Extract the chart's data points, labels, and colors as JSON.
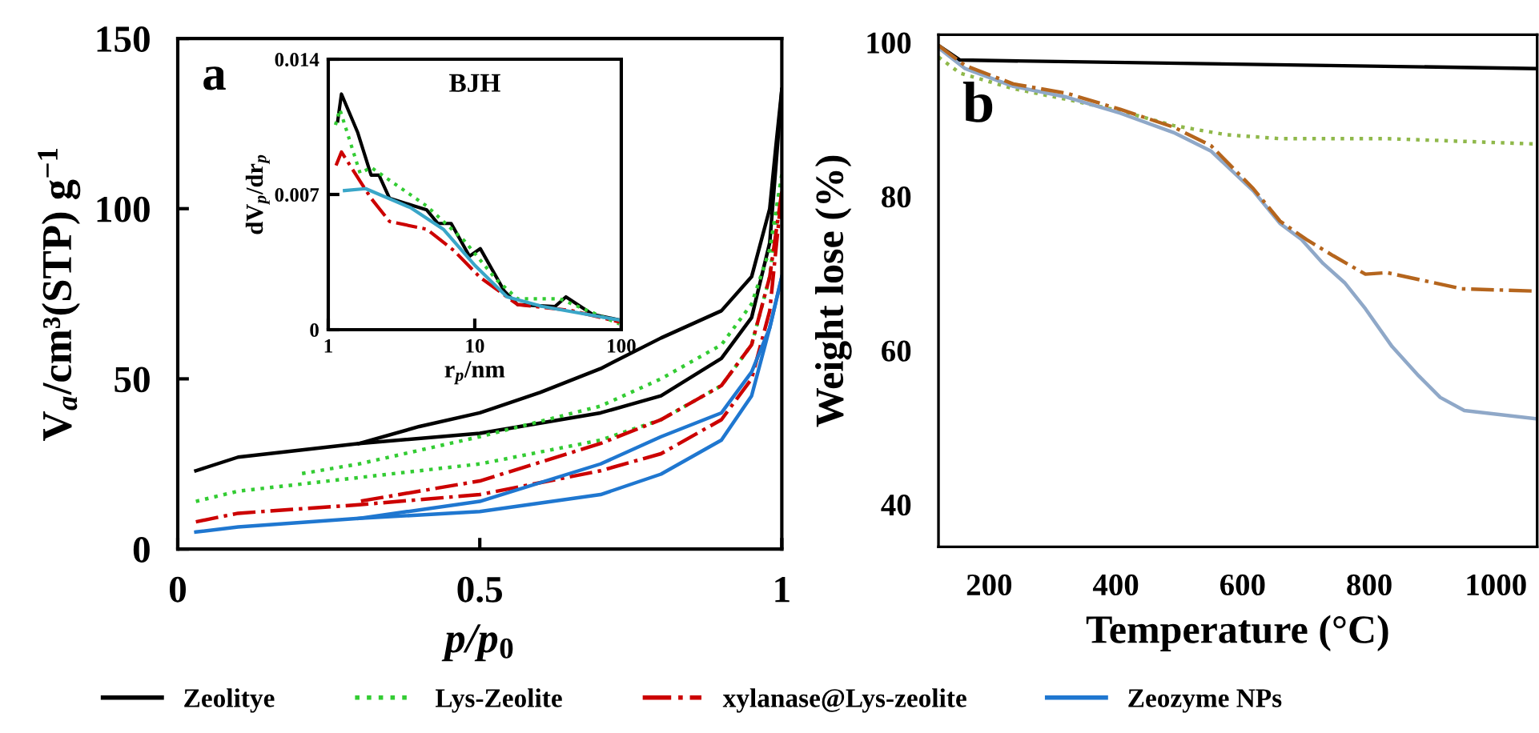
{
  "chart_data": [
    {
      "type": "line",
      "xlabel": "p/p$_{0}$",
      "ylabel": "V$_{a}$/cm³(STP) g$^{−1}$",
      "annotations": [
        "a"
      ],
      "xlim": [
        0,
        1
      ],
      "ylim": [
        0,
        150
      ],
      "xticks": [
        0,
        0.5,
        1
      ],
      "yticks": [
        0,
        50,
        100,
        150
      ],
      "legend": "bottom",
      "grid": false,
      "series": [
        {
          "name": "Zeolitye",
          "color": "#000000",
          "line_style": "solid",
          "x": [
            0.03,
            0.1,
            0.3,
            0.5,
            0.7,
            0.8,
            0.9,
            0.95,
            0.98,
            0.99,
            1.0
          ],
          "values": [
            23,
            27,
            31,
            34,
            40,
            45,
            56,
            68,
            90,
            112,
            135
          ]
        },
        {
          "color": "#000000",
          "line_style": "solid",
          "x": [
            1.0,
            0.99,
            0.98,
            0.95,
            0.9,
            0.8,
            0.7,
            0.6,
            0.5,
            0.4,
            0.3
          ],
          "values": [
            135,
            118,
            100,
            80,
            70,
            62,
            53,
            46,
            40,
            36,
            31
          ]
        },
        {
          "name": "Lys-Zeolite",
          "color": "#33cc33",
          "line_style": "dotted",
          "x": [
            0.03,
            0.1,
            0.3,
            0.5,
            0.7,
            0.8,
            0.9,
            0.95,
            0.98,
            1.0
          ],
          "values": [
            14,
            17,
            21,
            25,
            32,
            38,
            48,
            60,
            80,
            110
          ]
        },
        {
          "color": "#33cc33",
          "line_style": "dotted",
          "x": [
            1.0,
            0.98,
            0.95,
            0.9,
            0.8,
            0.7,
            0.5,
            0.3,
            0.2
          ],
          "values": [
            110,
            88,
            72,
            60,
            50,
            42,
            33,
            25,
            22
          ]
        },
        {
          "name": "xylanase@Lys-zeolite",
          "color": "#cc0000",
          "line_style": "dashdot",
          "x": [
            0.03,
            0.1,
            0.3,
            0.5,
            0.7,
            0.8,
            0.9,
            0.95,
            0.98,
            1.0
          ],
          "values": [
            8,
            10.5,
            13,
            16,
            23,
            28,
            38,
            50,
            70,
            105
          ]
        },
        {
          "color": "#cc0000",
          "line_style": "dashdot",
          "x": [
            1.0,
            0.98,
            0.95,
            0.9,
            0.8,
            0.7,
            0.5,
            0.3
          ],
          "values": [
            105,
            80,
            60,
            48,
            38,
            31,
            20,
            14
          ]
        },
        {
          "name": "Zeozyme NPs",
          "color": "#1f77d0",
          "line_style": "solid",
          "x": [
            0.03,
            0.1,
            0.3,
            0.5,
            0.7,
            0.8,
            0.9,
            0.95,
            0.98,
            1.0
          ],
          "values": [
            5,
            6.5,
            9,
            11,
            16,
            22,
            32,
            45,
            65,
            80
          ]
        },
        {
          "color": "#1f77d0",
          "line_style": "solid",
          "x": [
            1.0,
            0.98,
            0.95,
            0.9,
            0.8,
            0.7,
            0.5,
            0.3
          ],
          "values": [
            80,
            65,
            52,
            40,
            33,
            25,
            14,
            9
          ]
        }
      ]
    },
    {
      "type": "line",
      "xlabel": "r$_{p}$/nm",
      "ylabel": "dV$_{p}$/dr$_{p}$",
      "annotations": [
        "BJH"
      ],
      "log": "x",
      "xlim": [
        1,
        100
      ],
      "ylim": [
        0,
        0.014
      ],
      "xticks": [
        1,
        10,
        100
      ],
      "yticks": [
        0,
        0.007,
        0.014
      ],
      "grid": false,
      "series": [
        {
          "color": "#000000",
          "line_style": "solid",
          "x": [
            1.16,
            1.23,
            1.59,
            1.96,
            2.22,
            2.62,
            4.7,
            5.6,
            6.9,
            9.2,
            10.9,
            15.9,
            19.6,
            35.3,
            41.9,
            63.5,
            96.8
          ],
          "values": [
            0.0108,
            0.0122,
            0.0102,
            0.008,
            0.008,
            0.0068,
            0.0062,
            0.0055,
            0.0055,
            0.0038,
            0.0042,
            0.002,
            0.0013,
            0.0012,
            0.0017,
            0.0008,
            0.0005
          ]
        },
        {
          "color": "#33cc33",
          "line_style": "dotted",
          "x": [
            1.12,
            1.2,
            1.65,
            1.96,
            4.7,
            8.5,
            14,
            19.6,
            38,
            97
          ],
          "values": [
            0.0106,
            0.0114,
            0.0081,
            0.0084,
            0.0064,
            0.0046,
            0.0026,
            0.0016,
            0.0016,
            0.0003
          ]
        },
        {
          "color": "#cc0000",
          "line_style": "dashdot",
          "x": [
            1.13,
            1.23,
            1.96,
            2.62,
            4.7,
            7.2,
            10.9,
            19.6,
            45,
            97
          ],
          "values": [
            0.0085,
            0.0092,
            0.0068,
            0.0056,
            0.0052,
            0.0041,
            0.0027,
            0.0013,
            0.001,
            0.0004
          ]
        },
        {
          "color": "#3aa6c8",
          "line_style": "solid",
          "x": [
            1.29,
            1.8,
            3.68,
            6.1,
            10.1,
            16.6,
            29,
            97
          ],
          "values": [
            0.0072,
            0.0073,
            0.0063,
            0.0052,
            0.0033,
            0.0017,
            0.0012,
            0.0005
          ]
        }
      ]
    },
    {
      "type": "line",
      "xlabel": "Temperature (°C)",
      "ylabel": "Weight lose (%)",
      "annotations": [
        "b"
      ],
      "xlim": [
        120,
        1065
      ],
      "ylim": [
        34.5,
        101
      ],
      "xticks": [
        200,
        400,
        600,
        800,
        1000
      ],
      "yticks": [
        40,
        60,
        80,
        100
      ],
      "grid": false,
      "series": [
        {
          "color": "#000000",
          "line_style": "solid",
          "x": [
            120,
            154,
            1065
          ],
          "values": [
            99.6,
            97.7,
            96.6
          ]
        },
        {
          "color": "#8fb84a",
          "line_style": "dotted",
          "x": [
            120,
            154,
            238,
            322,
            407,
            491,
            575,
            659,
            828,
            1065
          ],
          "values": [
            98.1,
            96.0,
            94.0,
            92.6,
            91.1,
            89.2,
            88.0,
            87.5,
            87.5,
            86.8
          ]
        },
        {
          "color": "#8fa8c8",
          "line_style": "solid",
          "x": [
            120,
            162,
            238,
            322,
            407,
            491,
            550,
            617,
            659,
            693,
            727,
            761,
            794,
            836,
            878,
            912,
            950,
            1065
          ],
          "values": [
            99.3,
            96.6,
            94.3,
            92.9,
            90.8,
            88.3,
            85.9,
            80.7,
            76.5,
            74.4,
            71.3,
            68.8,
            65.4,
            60.5,
            56.7,
            53.9,
            52.2,
            51.1
          ]
        },
        {
          "color": "#b5651d",
          "line_style": "dashdot",
          "x": [
            120,
            162,
            238,
            322,
            407,
            491,
            550,
            617,
            659,
            701,
            743,
            794,
            828,
            946,
            1065
          ],
          "values": [
            99.6,
            97.0,
            94.6,
            93.4,
            91.3,
            89.0,
            86.6,
            81.0,
            76.8,
            74.4,
            72.3,
            69.9,
            70.1,
            68.0,
            67.7
          ]
        }
      ]
    }
  ]
}
